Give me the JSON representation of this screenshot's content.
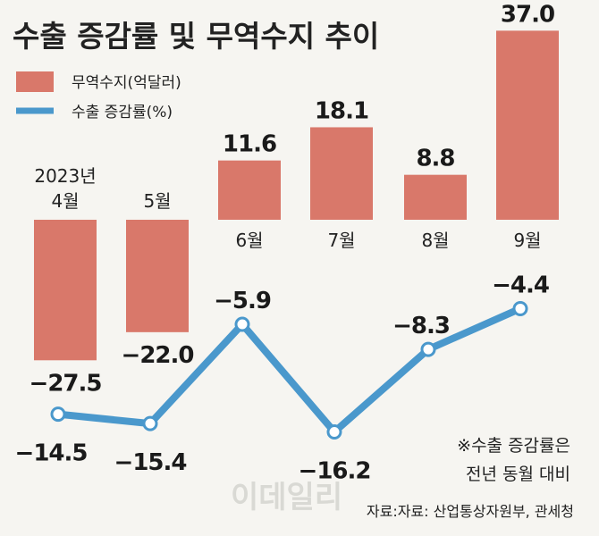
{
  "chart_data": {
    "type": "bar+line",
    "title": "수출 증감률 및 무역수지 추이",
    "categories": [
      "2023년 4월",
      "5월",
      "6월",
      "7월",
      "8월",
      "9월"
    ],
    "series": [
      {
        "name": "무역수지(억달러)",
        "type": "bar",
        "color": "#d9786a",
        "values": [
          -27.5,
          -22.0,
          11.6,
          18.1,
          8.8,
          37.0
        ],
        "labels": [
          "−27.5",
          "−22.0",
          "11.6",
          "18.1",
          "8.8",
          "37.0"
        ]
      },
      {
        "name": "수출 증감률(%)",
        "type": "line",
        "color": "#4a98cc",
        "values": [
          -14.5,
          -15.4,
          -5.9,
          -16.2,
          -8.3,
          -4.4
        ],
        "labels": [
          "−14.5",
          "−15.4",
          "−5.9",
          "−16.2",
          "−8.3",
          "−4.4"
        ]
      }
    ],
    "month_labels": [
      {
        "lines": [
          "2023년",
          "4월"
        ]
      },
      {
        "lines": [
          "5월"
        ]
      },
      {
        "lines": [
          "6월"
        ]
      },
      {
        "lines": [
          "7월"
        ]
      },
      {
        "lines": [
          "8월"
        ]
      },
      {
        "lines": [
          "9월"
        ]
      }
    ],
    "legend": [
      "무역수지(억달러)",
      "수출 증감률(%)"
    ],
    "note": [
      "※수출 증감률은",
      "전년 동월 대비"
    ],
    "source": "자료:자료: 산업통상자원부, 관세청",
    "watermark": "이데일리"
  }
}
